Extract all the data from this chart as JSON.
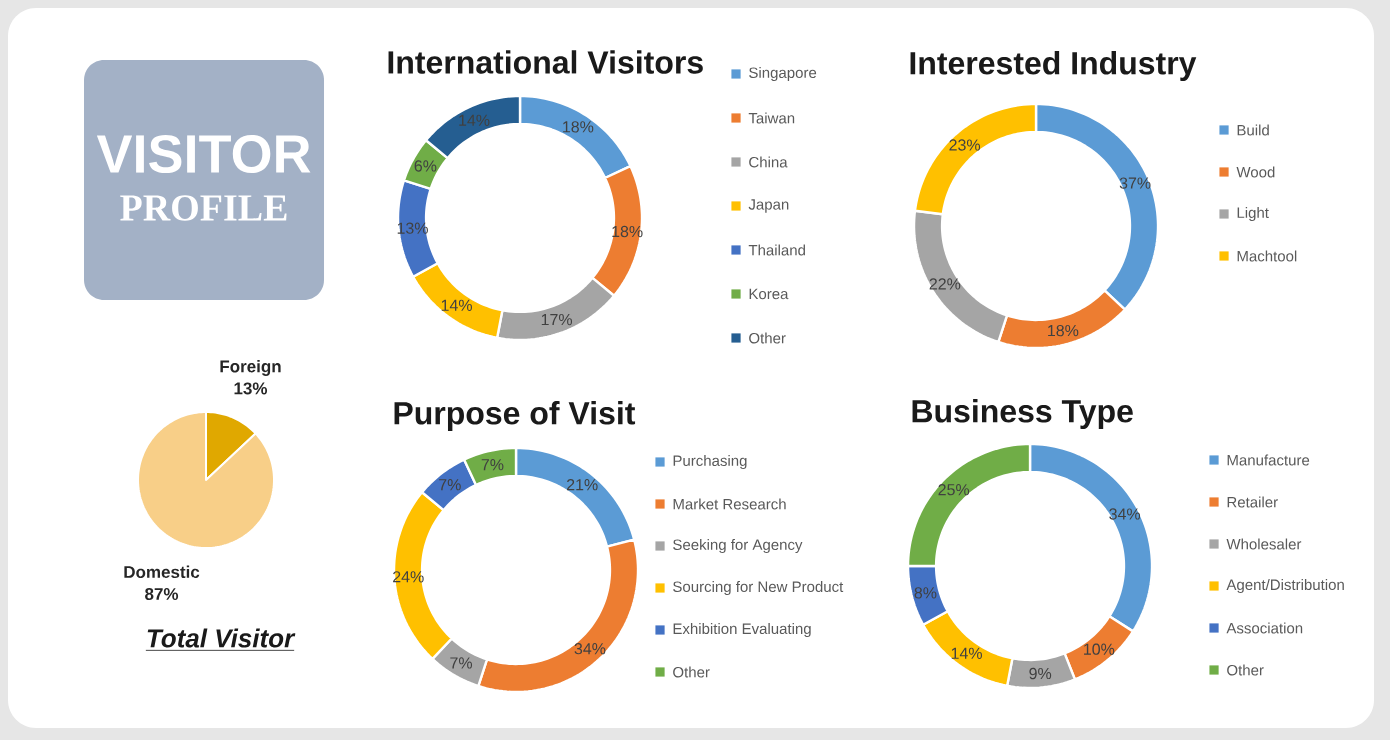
{
  "chart_data": [
    {
      "type": "other",
      "title": "VISITOR",
      "subtitle": "PROFILE"
    },
    {
      "type": "donut",
      "title": "International Visitors",
      "categories": [
        "Singapore",
        "Taiwan",
        "China",
        "Japan",
        "Thailand",
        "Korea",
        "Other"
      ],
      "values": [
        18,
        18,
        17,
        14,
        13,
        6,
        14
      ],
      "colors": [
        "#5b9bd5",
        "#ed7d31",
        "#a5a5a5",
        "#ffc000",
        "#4472c4",
        "#70ad47",
        "#255e91"
      ],
      "value_labels": [
        "18%",
        "18%",
        "17%",
        "14%",
        "13%",
        "6%",
        "14%"
      ],
      "legend": "right"
    },
    {
      "type": "donut",
      "title": "Interested Industry",
      "categories": [
        "Build",
        "Wood",
        "Light",
        "Machtool"
      ],
      "values": [
        37,
        18,
        22,
        23
      ],
      "colors": [
        "#5b9bd5",
        "#ed7d31",
        "#a5a5a5",
        "#ffc000"
      ],
      "value_labels": [
        "37%",
        "18%",
        "22%",
        "23%"
      ],
      "legend": "right"
    },
    {
      "type": "pie",
      "title": "Total Visitor",
      "categories": [
        "Foreign",
        "Domestic"
      ],
      "values": [
        13,
        87
      ],
      "colors": [
        "#e0a800",
        "#f8cf88"
      ],
      "value_labels": [
        "13%",
        "87%"
      ]
    },
    {
      "type": "donut",
      "title": "Purpose of Visit",
      "categories": [
        "Purchasing",
        "Market Research",
        "Seeking for Agency",
        "Sourcing for New Product",
        "Exhibition Evaluating",
        "Other"
      ],
      "values": [
        21,
        34,
        7,
        24,
        7,
        7
      ],
      "colors": [
        "#5b9bd5",
        "#ed7d31",
        "#a5a5a5",
        "#ffc000",
        "#4472c4",
        "#70ad47"
      ],
      "value_labels": [
        "21%",
        "34%",
        "7%",
        "24%",
        "7%",
        "7%"
      ],
      "legend": "right"
    },
    {
      "type": "donut",
      "title": "Business Type",
      "categories": [
        "Manufacture",
        "Retailer",
        "Wholesaler",
        "Agent/Distribution",
        "Association",
        "Other"
      ],
      "values": [
        34,
        10,
        9,
        14,
        8,
        25
      ],
      "colors": [
        "#5b9bd5",
        "#ed7d31",
        "#a5a5a5",
        "#ffc000",
        "#4472c4",
        "#70ad47"
      ],
      "value_labels": [
        "34%",
        "10%",
        "9%",
        "14%",
        "8%",
        "25%"
      ],
      "legend": "right"
    }
  ]
}
